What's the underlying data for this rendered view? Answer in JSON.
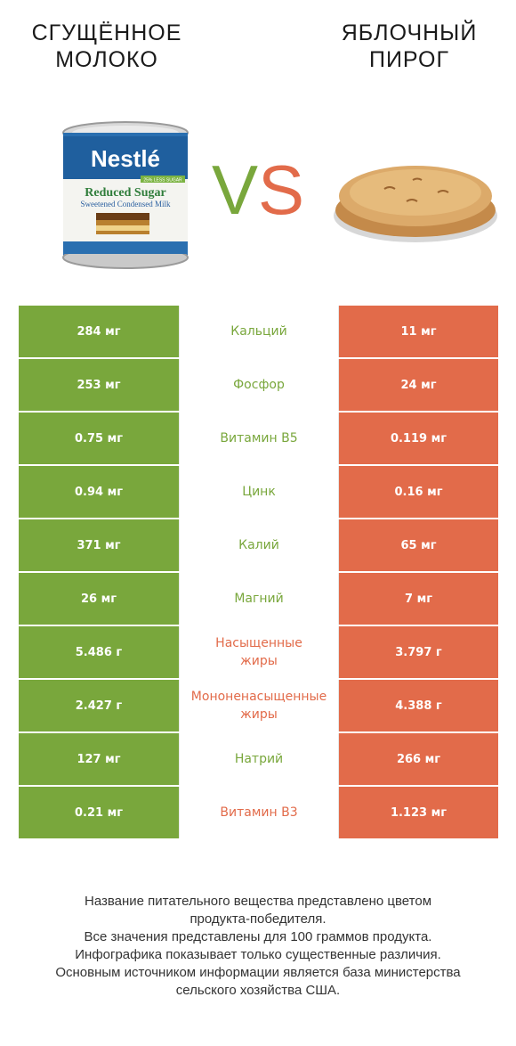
{
  "header": {
    "left_title": "СГУЩЁННОЕ\nМОЛОКО",
    "right_title": "ЯБЛОЧНЫЙ\nПИРОГ",
    "vs_v": "V",
    "vs_s": "S"
  },
  "images": {
    "left_label_brand": "Nestlé",
    "left_label_line1": "Reduced Sugar",
    "left_label_line2": "Sweetened Condensed Milk",
    "left_label_tag": "25% LESS SUGAR"
  },
  "colors": {
    "left_winner": "#79a73c",
    "right_winner": "#e26b4a"
  },
  "rows": [
    {
      "left": "284 мг",
      "nutrient": "Кальций",
      "right": "11 мг",
      "winner": "left"
    },
    {
      "left": "253 мг",
      "nutrient": "Фосфор",
      "right": "24 мг",
      "winner": "left"
    },
    {
      "left": "0.75 мг",
      "nutrient": "Витамин B5",
      "right": "0.119 мг",
      "winner": "left"
    },
    {
      "left": "0.94 мг",
      "nutrient": "Цинк",
      "right": "0.16 мг",
      "winner": "left"
    },
    {
      "left": "371 мг",
      "nutrient": "Калий",
      "right": "65 мг",
      "winner": "left"
    },
    {
      "left": "26 мг",
      "nutrient": "Магний",
      "right": "7 мг",
      "winner": "left"
    },
    {
      "left": "5.486 г",
      "nutrient": "Насыщенные\nжиры",
      "right": "3.797 г",
      "winner": "right"
    },
    {
      "left": "2.427 г",
      "nutrient": "Мононенасыщенные\nжиры",
      "right": "4.388 г",
      "winner": "right"
    },
    {
      "left": "127 мг",
      "nutrient": "Натрий",
      "right": "266 мг",
      "winner": "left"
    },
    {
      "left": "0.21 мг",
      "nutrient": "Витамин B3",
      "right": "1.123 мг",
      "winner": "right"
    }
  ],
  "footer": {
    "line1": "Название питательного вещества представлено цветом",
    "line2": "продукта-победителя.",
    "line3": "Все значения представлены для 100 граммов продукта.",
    "line4": "Инфографика показывает только существенные различия.",
    "line5": "Основным источником информации является база министерства",
    "line6": "сельского хозяйства США."
  }
}
